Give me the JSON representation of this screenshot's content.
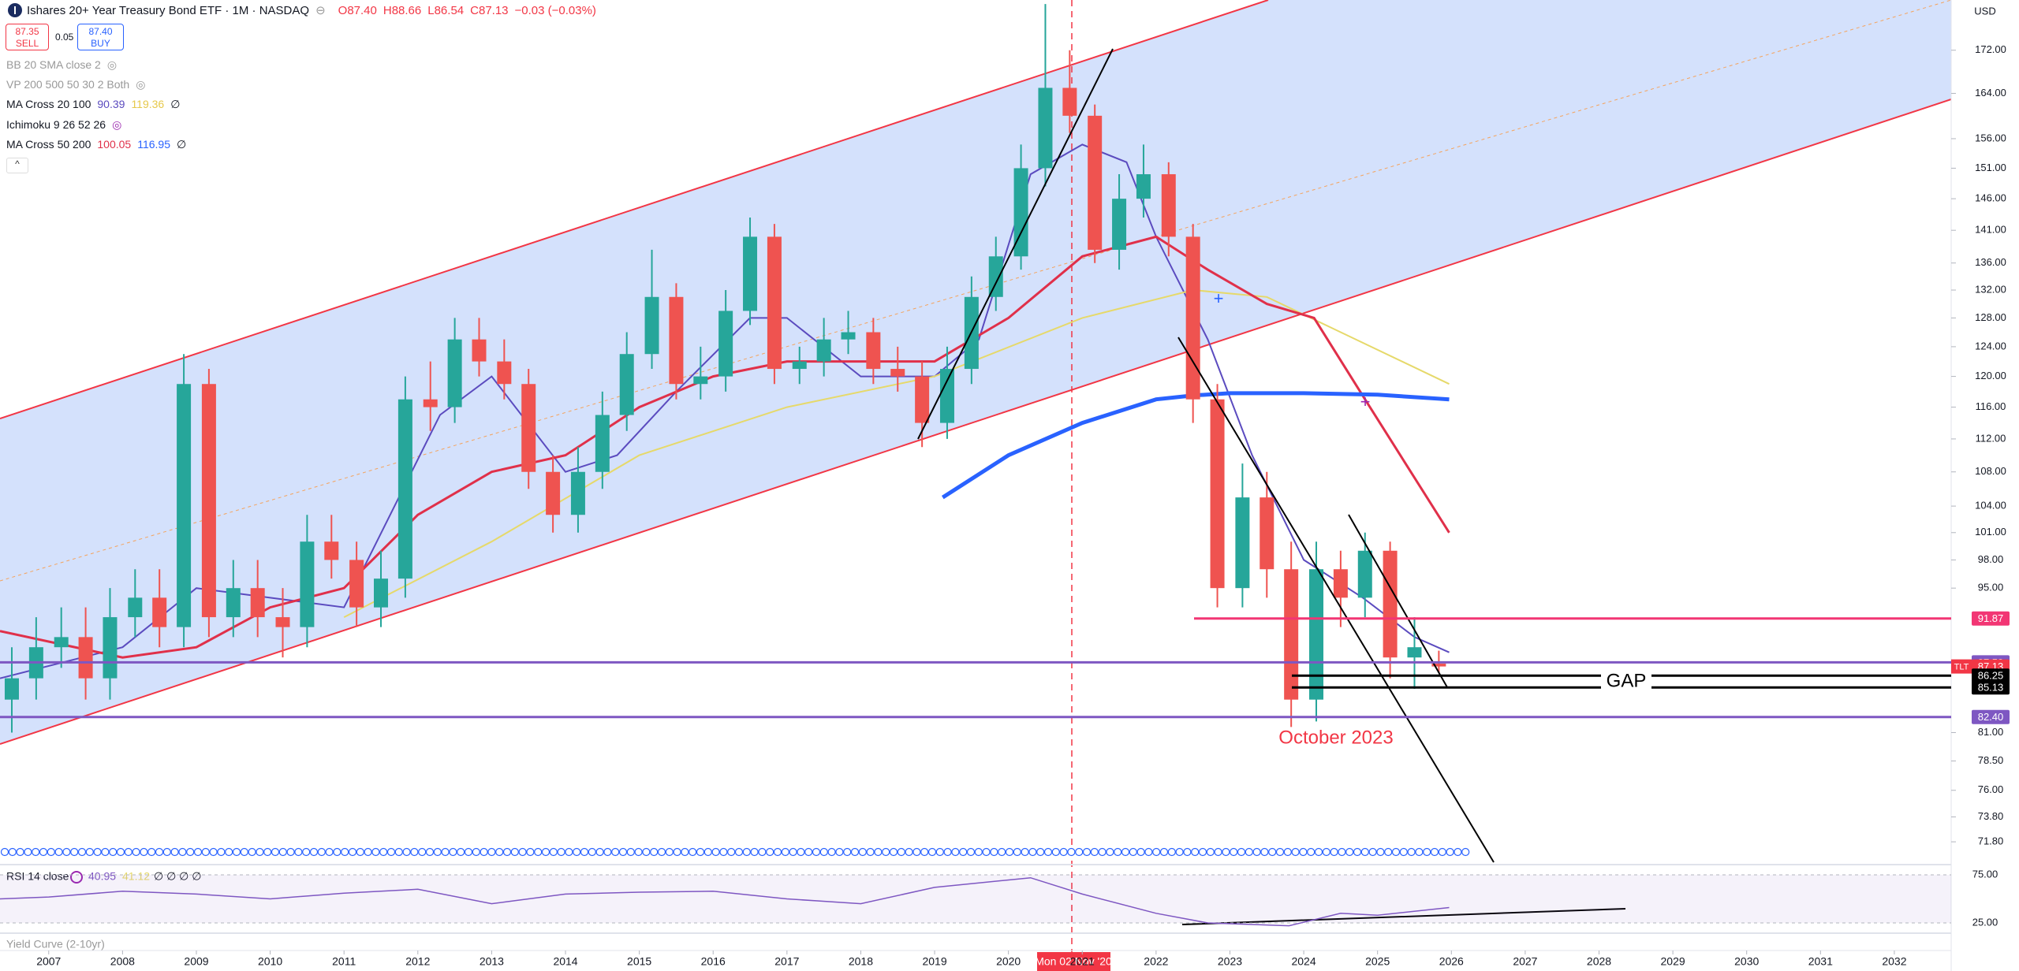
{
  "header": {
    "title": "Ishares 20+ Year Treasury Bond ETF · 1M · NASDAQ",
    "open": "O87.40",
    "high": "H88.66",
    "low": "L86.54",
    "close": "C87.13",
    "change": "−0.03 (−0.03%)",
    "sell_price": "87.35",
    "sell": "SELL",
    "spread": "0.05",
    "buy_price": "87.40",
    "buy": "BUY",
    "currency": "USD"
  },
  "indicators": [
    {
      "name": "BB 20 SMA close 2"
    },
    {
      "name": "VP 200 500 50 30 2 Both"
    },
    {
      "name": "MA Cross 20 100",
      "v1": "90.39",
      "v2": "119.36",
      "v3": "∅"
    },
    {
      "name": "Ichimoku 9 26 52 26"
    },
    {
      "name": "MA Cross 50 200",
      "v1": "100.05",
      "v2": "116.95",
      "v3": "∅"
    }
  ],
  "annotations": {
    "october": "October 2023",
    "gap": "GAP",
    "symbol": "TLT",
    "crosshair_date": "Mon 02 Nov '20",
    "yield_curve": "Yield Curve (2-10yr)",
    "rsi_extra": "∅ ∅ ∅ ∅"
  },
  "chart_data": [
    {
      "type": "candlestick",
      "log_scale": true,
      "grid": false,
      "up_color": "#26a69a",
      "down_color": "#ef5350",
      "xlim": [
        2006.34,
        2032.77
      ],
      "ylim": [
        70.2,
        181.8
      ],
      "xticks": [
        2007,
        2008,
        2009,
        2010,
        2011,
        2012,
        2013,
        2014,
        2015,
        2016,
        2017,
        2018,
        2019,
        2020,
        2021,
        2022,
        2023,
        2024,
        2025,
        2026,
        2027,
        2028,
        2029,
        2030,
        2031,
        2032
      ],
      "yticks": [
        {
          "value": 172,
          "label": "172.00"
        },
        {
          "value": 164,
          "label": "164.00"
        },
        {
          "value": 156,
          "label": "156.00"
        },
        {
          "value": 151,
          "label": "151.00"
        },
        {
          "value": 146,
          "label": "146.00"
        },
        {
          "value": 141,
          "label": "141.00"
        },
        {
          "value": 136,
          "label": "136.00"
        },
        {
          "value": 132,
          "label": "132.00"
        },
        {
          "value": 128,
          "label": "128.00"
        },
        {
          "value": 124,
          "label": "124.00"
        },
        {
          "value": 120,
          "label": "120.00"
        },
        {
          "value": 116,
          "label": "116.00"
        },
        {
          "value": 112,
          "label": "112.00"
        },
        {
          "value": 108,
          "label": "108.00"
        },
        {
          "value": 104,
          "label": "104.00"
        },
        {
          "value": 101,
          "label": "101.00"
        },
        {
          "value": 98,
          "label": "98.00"
        },
        {
          "value": 95,
          "label": "95.00"
        },
        {
          "value": 81,
          "label": "81.00"
        },
        {
          "value": 78.5,
          "label": "78.50"
        },
        {
          "value": 76,
          "label": "76.00"
        },
        {
          "value": 73.8,
          "label": "73.80"
        },
        {
          "value": 71.8,
          "label": "71.80"
        }
      ],
      "x": [
        2006.5,
        2006.83,
        2007.17,
        2007.5,
        2007.83,
        2008.17,
        2008.5,
        2008.83,
        2009.17,
        2009.5,
        2009.83,
        2010.17,
        2010.5,
        2010.83,
        2011.17,
        2011.5,
        2011.83,
        2012.17,
        2012.5,
        2012.83,
        2013.17,
        2013.5,
        2013.83,
        2014.17,
        2014.5,
        2014.83,
        2015.17,
        2015.5,
        2015.83,
        2016.17,
        2016.5,
        2016.83,
        2017.17,
        2017.5,
        2017.83,
        2018.17,
        2018.5,
        2018.83,
        2019.17,
        2019.5,
        2019.83,
        2020.17,
        2020.5,
        2020.83,
        2021.17,
        2021.5,
        2021.83,
        2022.17,
        2022.5,
        2022.83,
        2023.17,
        2023.5,
        2023.83,
        2024.17,
        2024.5,
        2024.83,
        2025.17,
        2025.5,
        2025.83
      ],
      "open": [
        84,
        86,
        89,
        90,
        86,
        92,
        94,
        91,
        119,
        92,
        95,
        92,
        91,
        100,
        98,
        93,
        96,
        117,
        116,
        125,
        122,
        119,
        108,
        103,
        108,
        115,
        123,
        131,
        119,
        120,
        129,
        140,
        121,
        122,
        125,
        126,
        121,
        120,
        114,
        121,
        131,
        137,
        151,
        165,
        160,
        138,
        146,
        150,
        140,
        117,
        95,
        105,
        97,
        84,
        97,
        94,
        99,
        88,
        87.4
      ],
      "high": [
        89,
        92,
        93,
        93,
        95,
        97,
        97,
        123,
        121,
        98,
        98,
        95,
        103,
        103,
        100,
        99,
        120,
        122,
        128,
        128,
        125,
        121,
        110,
        111,
        118,
        126,
        138,
        133,
        124,
        132,
        143,
        142,
        124,
        128,
        129,
        128,
        124,
        122,
        124,
        134,
        140,
        155,
        181,
        172,
        162,
        150,
        155,
        152,
        142,
        119,
        109,
        108,
        100,
        100,
        99,
        101,
        100,
        92,
        88.66
      ],
      "low": [
        81,
        84,
        87,
        84,
        84,
        90,
        89,
        89,
        90,
        90,
        90,
        88,
        89,
        96,
        91,
        91,
        94,
        113,
        114,
        120,
        117,
        106,
        101,
        101,
        106,
        113,
        121,
        117,
        117,
        118,
        127,
        119,
        119,
        120,
        123,
        119,
        118,
        111,
        112,
        119,
        129,
        135,
        148,
        157,
        136,
        135,
        143,
        137,
        114,
        93,
        93,
        94,
        81.5,
        82,
        91,
        92,
        86,
        85,
        86.54
      ],
      "close": [
        86,
        89,
        90,
        86,
        92,
        94,
        91,
        119,
        92,
        95,
        92,
        91,
        100,
        98,
        93,
        96,
        117,
        116,
        125,
        122,
        119,
        108,
        103,
        108,
        115,
        123,
        131,
        119,
        120,
        129,
        140,
        121,
        122,
        125,
        126,
        121,
        120,
        114,
        121,
        131,
        137,
        151,
        165,
        160,
        138,
        146,
        150,
        140,
        117,
        95,
        105,
        97,
        84,
        97,
        94,
        99,
        88,
        89,
        87.13
      ],
      "series": [
        {
          "color": "#5b4bbf",
          "width": 2,
          "x": [
            2006.34,
            2008,
            2009,
            2010,
            2011,
            2012.3,
            2013,
            2014,
            2014.7,
            2015.5,
            2016.5,
            2017,
            2018,
            2019,
            2019.6,
            2020.3,
            2021,
            2021.6,
            2022,
            2022.7,
            2023.3,
            2024,
            2024.8,
            2025.5,
            2025.97
          ],
          "values": [
            86,
            89,
            95,
            94,
            93,
            115,
            120,
            108,
            110,
            118,
            128,
            128,
            120,
            120,
            125,
            150,
            155,
            152,
            140,
            125,
            110,
            98,
            94,
            90,
            88.5
          ]
        },
        {
          "color": "#e6d96a",
          "width": 2,
          "x": [
            2011,
            2013,
            2015,
            2017,
            2019,
            2021,
            2022.5,
            2023.5,
            2024.5,
            2025.97
          ],
          "values": [
            92,
            100,
            110,
            116,
            120,
            128,
            132,
            131,
            126,
            119
          ]
        },
        {
          "color": "#e0304a",
          "width": 3,
          "x": [
            2006.34,
            2008,
            2009,
            2010,
            2011,
            2012,
            2013,
            2014,
            2015,
            2016,
            2017,
            2018,
            2019,
            2020,
            2021,
            2022,
            2022.7,
            2023.5,
            2024.14,
            2024.83,
            2025.97
          ],
          "values": [
            90.6,
            88,
            89,
            93,
            95,
            103,
            108,
            110,
            116,
            120,
            122,
            122,
            122,
            128,
            137,
            140,
            135,
            130,
            128,
            117,
            101
          ]
        },
        {
          "color": "#2962ff",
          "width": 5,
          "x": [
            2019.11,
            2020,
            2021,
            2022,
            2022.5,
            2023,
            2024,
            2025,
            2025.97
          ],
          "values": [
            105,
            110,
            114,
            117,
            117.5,
            117.8,
            117.8,
            117.6,
            117
          ]
        }
      ],
      "levels": [
        {
          "value": 91.87,
          "color": "#f23674"
        },
        {
          "value": 87.53,
          "color": "#7e57c2"
        },
        {
          "value": 87.13,
          "color": "#f23645"
        },
        {
          "value": 86.25,
          "color": "#000000"
        },
        {
          "value": 85.13,
          "color": "#000000"
        },
        {
          "value": 82.4,
          "label": "82.40",
          "color": "#7e57c2"
        }
      ]
    },
    {
      "type": "line",
      "title": "RSI 14 close",
      "value": 40.95,
      "ma_value": 41.12,
      "color": "#7e57c2",
      "ylim": [
        18.4,
        81.6
      ],
      "yticks": [
        {
          "value": 75,
          "label": "75.00"
        },
        {
          "value": 25,
          "label": "25.00"
        }
      ],
      "x": [
        2006.34,
        2007,
        2008,
        2009,
        2010,
        2011,
        2012,
        2013,
        2014,
        2015,
        2016,
        2017,
        2018,
        2019,
        2020.3,
        2021,
        2022,
        2022.7,
        2023.8,
        2024.5,
        2025,
        2025.97
      ],
      "values": [
        50,
        52,
        58,
        55,
        50,
        56,
        60,
        45,
        55,
        57,
        58,
        50,
        45,
        62,
        72,
        55,
        35,
        25,
        22,
        35,
        33,
        40.95
      ]
    }
  ]
}
